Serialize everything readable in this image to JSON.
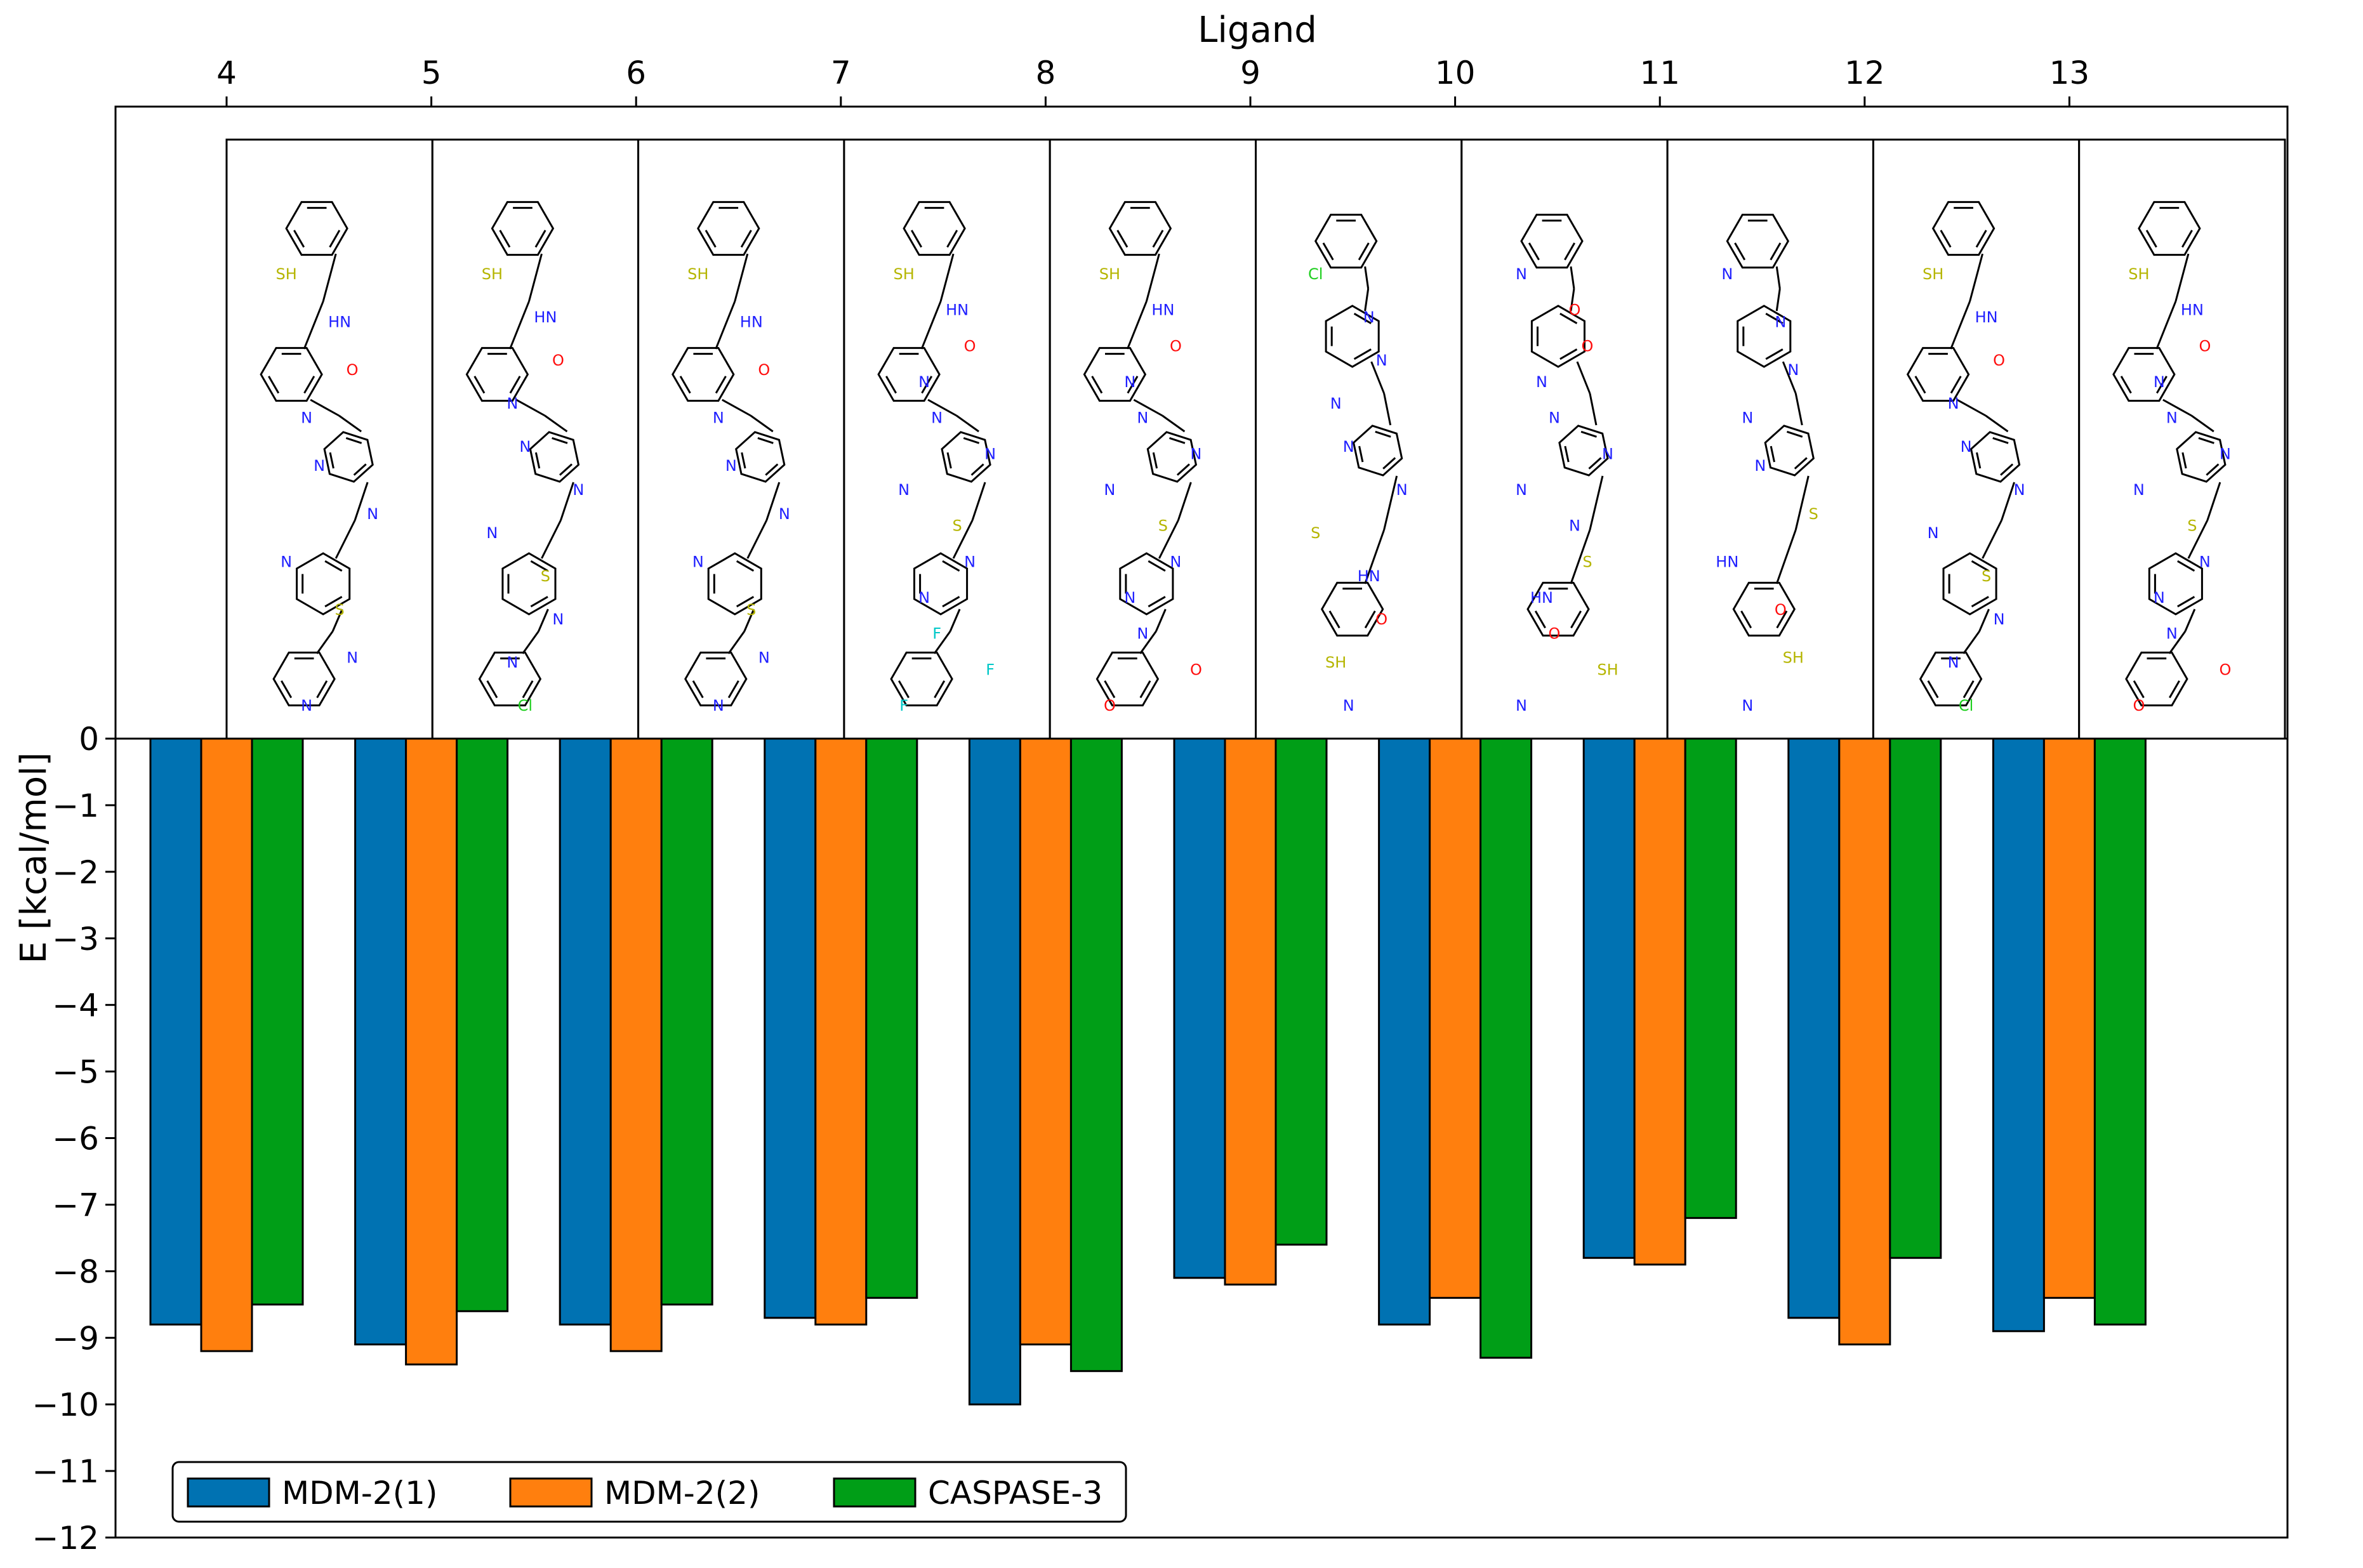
{
  "chart_data": {
    "type": "bar",
    "title": "",
    "xlabel": "Ligand",
    "ylabel": "E [kcal/mol]",
    "categories": [
      "4",
      "5",
      "6",
      "7",
      "8",
      "9",
      "10",
      "11",
      "12",
      "13"
    ],
    "series": [
      {
        "name": "MDM-2(1)",
        "color": "#0072b2",
        "values": [
          -8.8,
          -9.1,
          -8.8,
          -8.7,
          -10.0,
          -8.1,
          -8.8,
          -7.8,
          -8.7,
          -8.9
        ]
      },
      {
        "name": "MDM-2(2)",
        "color": "#ff7f0e",
        "values": [
          -9.2,
          -9.4,
          -9.2,
          -8.8,
          -9.1,
          -8.2,
          -8.4,
          -7.9,
          -9.1,
          -8.4
        ]
      },
      {
        "name": "CASPASE-3",
        "color": "#009e17",
        "values": [
          -8.5,
          -8.6,
          -8.5,
          -8.4,
          -9.5,
          -7.6,
          -9.3,
          -7.2,
          -7.8,
          -8.8
        ]
      }
    ],
    "ylim": [
      -12,
      0
    ],
    "yticks": [
      0,
      -1,
      -2,
      -3,
      -4,
      -5,
      -6,
      -7,
      -8,
      -9,
      -10,
      -11,
      -12
    ],
    "ytick_labels": [
      "0",
      "−1",
      "−2",
      "−3",
      "−4",
      "−5",
      "−6",
      "−7",
      "−8",
      "−9",
      "−10",
      "−11",
      "−12"
    ],
    "grid": false,
    "legend_position": "bottom-left",
    "x_axis_position": "top",
    "structure_images": true,
    "structure_atom_labels": [
      {
        "ligand": "4",
        "labels": [
          "SH",
          "HN",
          "O",
          "N",
          "N",
          "N",
          "N",
          "S",
          "N",
          "N"
        ]
      },
      {
        "ligand": "5",
        "labels": [
          "SH",
          "HN",
          "O",
          "N",
          "N",
          "N",
          "N",
          "S",
          "N",
          "N",
          "Cl"
        ]
      },
      {
        "ligand": "6",
        "labels": [
          "SH",
          "HN",
          "O",
          "N",
          "N",
          "N",
          "N",
          "S",
          "N",
          "N"
        ]
      },
      {
        "ligand": "7",
        "labels": [
          "SH",
          "HN",
          "O",
          "N",
          "N",
          "N",
          "N",
          "S",
          "N",
          "N",
          "F",
          "F",
          "F"
        ]
      },
      {
        "ligand": "8",
        "labels": [
          "SH",
          "HN",
          "O",
          "N",
          "N",
          "N",
          "N",
          "S",
          "N",
          "N",
          "N",
          "O",
          "O"
        ]
      },
      {
        "ligand": "9",
        "labels": [
          "Cl",
          "N",
          "N",
          "N",
          "N",
          "N",
          "S",
          "HN",
          "O",
          "SH",
          "N"
        ]
      },
      {
        "ligand": "10",
        "labels": [
          "N",
          "O",
          "O",
          "N",
          "N",
          "N",
          "N",
          "N",
          "S",
          "HN",
          "O",
          "SH",
          "N"
        ]
      },
      {
        "ligand": "11",
        "labels": [
          "N",
          "N",
          "N",
          "N",
          "N",
          "S",
          "HN",
          "O",
          "SH",
          "N"
        ]
      },
      {
        "ligand": "12",
        "labels": [
          "SH",
          "HN",
          "O",
          "N",
          "N",
          "N",
          "N",
          "S",
          "N",
          "N",
          "Cl"
        ]
      },
      {
        "ligand": "13",
        "labels": [
          "SH",
          "HN",
          "O",
          "N",
          "N",
          "N",
          "N",
          "S",
          "N",
          "N",
          "N",
          "O",
          "O"
        ]
      }
    ]
  }
}
